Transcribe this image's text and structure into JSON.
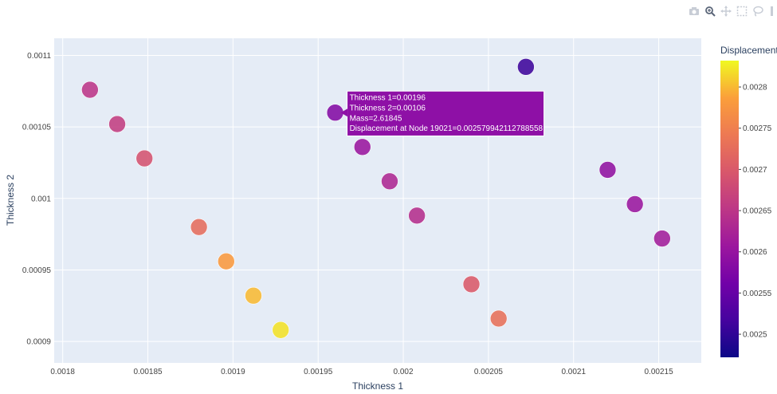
{
  "toolbar": {
    "icons": [
      "camera-icon",
      "zoom-icon",
      "pan-icon",
      "box-select-icon",
      "lasso-icon",
      "more-icon"
    ]
  },
  "chart_data": {
    "type": "scatter",
    "xlabel": "Thickness 1",
    "ylabel": "Thickness 2",
    "xlim": [
      0.001795,
      0.002175
    ],
    "ylim": [
      0.000885,
      0.001112
    ],
    "xticks": [
      0.0018,
      0.00185,
      0.0019,
      0.00195,
      0.002,
      0.00205,
      0.0021,
      0.00215
    ],
    "xticklabels": [
      "0.0018",
      "0.00185",
      "0.0019",
      "0.00195",
      "0.002",
      "0.00205",
      "0.0021",
      "0.00215"
    ],
    "yticks": [
      0.0009,
      0.00095,
      0.001,
      0.00105,
      0.0011
    ],
    "yticklabels": [
      "0.0009",
      "0.00095",
      "0.001",
      "0.00105",
      "0.0011"
    ],
    "grid": true,
    "colorbar": {
      "title": "Displacement",
      "range": [
        0.002472,
        0.002832
      ],
      "ticks": [
        0.0025,
        0.00255,
        0.0026,
        0.00265,
        0.0027,
        0.00275,
        0.0028
      ],
      "ticklabels": [
        "0.0025",
        "0.00255",
        "0.0026",
        "0.00265",
        "0.0027",
        "0.00275",
        "0.0028"
      ]
    },
    "points": [
      {
        "x": 0.001816,
        "y": 0.001076,
        "c": 0.00265
      },
      {
        "x": 0.001832,
        "y": 0.001052,
        "c": 0.00266
      },
      {
        "x": 0.001848,
        "y": 0.001028,
        "c": 0.00269
      },
      {
        "x": 0.00188,
        "y": 0.00098,
        "c": 0.002725
      },
      {
        "x": 0.001896,
        "y": 0.000956,
        "c": 0.00278
      },
      {
        "x": 0.001912,
        "y": 0.000932,
        "c": 0.0028
      },
      {
        "x": 0.001928,
        "y": 0.000908,
        "c": 0.00282
      },
      {
        "x": 0.00196,
        "y": 0.00106,
        "c": 0.00258
      },
      {
        "x": 0.001976,
        "y": 0.001036,
        "c": 0.002605
      },
      {
        "x": 0.001992,
        "y": 0.001012,
        "c": 0.00263
      },
      {
        "x": 0.002008,
        "y": 0.000988,
        "c": 0.00264
      },
      {
        "x": 0.00204,
        "y": 0.00094,
        "c": 0.0027
      },
      {
        "x": 0.002056,
        "y": 0.000916,
        "c": 0.00273
      },
      {
        "x": 0.002072,
        "y": 0.001092,
        "c": 0.00251
      },
      {
        "x": 0.00212,
        "y": 0.00102,
        "c": 0.002595
      },
      {
        "x": 0.002136,
        "y": 0.000996,
        "c": 0.002605
      },
      {
        "x": 0.002152,
        "y": 0.000972,
        "c": 0.002615
      }
    ],
    "hover": {
      "point_index": 7,
      "lines": [
        "Thickness 1=0.00196",
        "Thickness 2=0.00106",
        "Mass=2.61845",
        "Displacement at Node 19021=0.002579942112788558"
      ]
    }
  }
}
